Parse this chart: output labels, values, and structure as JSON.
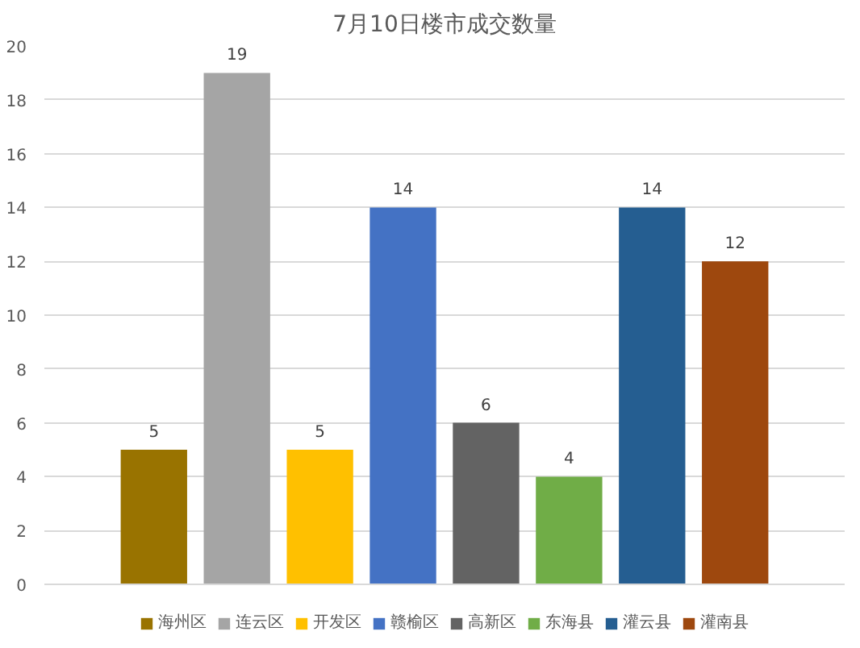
{
  "chart_data": {
    "type": "bar",
    "title": "7月10日楼市成交数量",
    "categories": [
      null
    ],
    "series": [
      {
        "name": "海州区",
        "color": "#997300",
        "values": [
          5
        ]
      },
      {
        "name": "连云区",
        "color": "#a5a5a5",
        "values": [
          19
        ]
      },
      {
        "name": "开发区",
        "color": "#ffc000",
        "values": [
          5
        ]
      },
      {
        "name": "赣榆区",
        "color": "#4472c4",
        "values": [
          14
        ]
      },
      {
        "name": "高新区",
        "color": "#636363",
        "values": [
          6
        ]
      },
      {
        "name": "东海县",
        "color": "#70ad47",
        "values": [
          4
        ]
      },
      {
        "name": "灌云县",
        "color": "#255e91",
        "values": [
          14
        ]
      },
      {
        "name": "灌南县",
        "color": "#9e480e",
        "values": [
          12
        ]
      }
    ],
    "ylim": [
      0,
      20
    ],
    "yticks": [
      0,
      2,
      4,
      6,
      8,
      10,
      12,
      14,
      16,
      18,
      20
    ],
    "grid": "y",
    "legend": "bottom",
    "data_labels": true
  }
}
